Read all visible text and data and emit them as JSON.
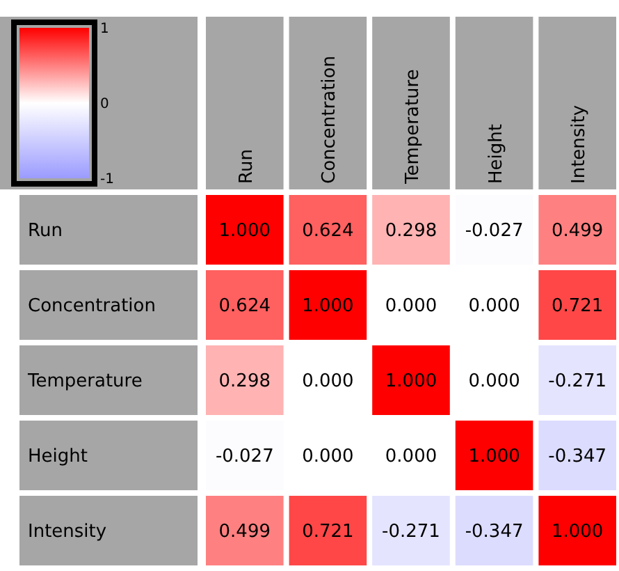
{
  "chart_data": {
    "type": "heatmap",
    "categories": [
      "Run",
      "Concentration",
      "Temperature",
      "Height",
      "Intensity"
    ],
    "y_categories": [
      "Run",
      "Concentration",
      "Temperature",
      "Height",
      "Intensity"
    ],
    "cells": [
      [
        1,
        0.624,
        0.298,
        -0.027,
        0.499
      ],
      [
        0.624,
        1,
        0,
        0,
        0.721
      ],
      [
        0.298,
        0,
        1,
        0,
        -0.271
      ],
      [
        -0.027,
        0,
        0,
        1,
        -0.347
      ],
      [
        0.499,
        0.721,
        -0.271,
        -0.347,
        1
      ]
    ],
    "cell_labels": [
      [
        "1.000",
        "0.624",
        "0.298",
        "-0.027",
        "0.499"
      ],
      [
        "0.624",
        "1.000",
        "0.000",
        "0.000",
        "0.721"
      ],
      [
        "0.298",
        "0.000",
        "1.000",
        "0.000",
        "-0.271"
      ],
      [
        "-0.027",
        "0.000",
        "0.000",
        "1.000",
        "-0.347"
      ],
      [
        "0.499",
        "0.721",
        "-0.271",
        "-0.347",
        "1.000"
      ]
    ],
    "clim": [
      -1,
      1
    ],
    "cticks": [
      1,
      0,
      -1
    ]
  }
}
